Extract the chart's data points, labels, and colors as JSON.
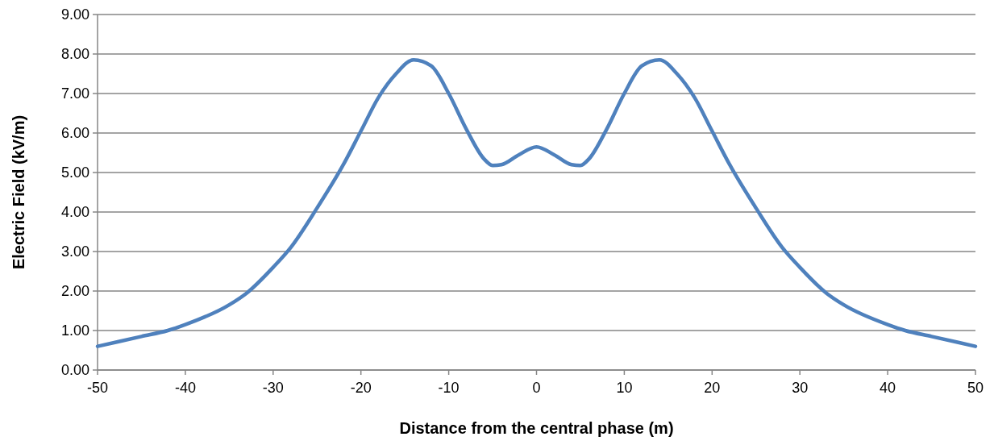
{
  "chart_data": {
    "type": "line",
    "xlabel": "Distance from the central phase (m)",
    "ylabel": "Electric Field (kV/m)",
    "x": [
      -50,
      -45,
      -42,
      -40,
      -35,
      -33,
      -30,
      -28,
      -25,
      -22,
      -20,
      -18,
      -16,
      -14,
      -12,
      -10,
      -8,
      -6,
      -5,
      -4,
      -2,
      0,
      2,
      4,
      5,
      6,
      8,
      10,
      12,
      14,
      16,
      18,
      20,
      22,
      25,
      28,
      30,
      33,
      35,
      40,
      42,
      45,
      50
    ],
    "series": [
      {
        "color": "#4f81bd",
        "values": [
          0.6,
          0.85,
          1.0,
          1.15,
          1.65,
          1.95,
          2.6,
          3.1,
          4.1,
          5.2,
          6.05,
          6.9,
          7.5,
          7.85,
          7.7,
          7.0,
          6.1,
          5.35,
          5.18,
          5.2,
          5.45,
          5.65,
          5.45,
          5.2,
          5.18,
          5.35,
          6.1,
          7.0,
          7.7,
          7.85,
          7.5,
          6.9,
          6.05,
          5.2,
          4.1,
          3.1,
          2.6,
          1.95,
          1.65,
          1.15,
          1.0,
          0.85,
          0.6
        ]
      }
    ],
    "xlim": [
      -50,
      50
    ],
    "xticks": [
      -50,
      -40,
      -30,
      -20,
      -10,
      0,
      10,
      20,
      30,
      40,
      50
    ],
    "ylim": [
      0,
      9
    ],
    "yticks": [
      {
        "value": 0,
        "label": "0.00"
      },
      {
        "value": 1,
        "label": "1.00"
      },
      {
        "value": 2,
        "label": "2.00"
      },
      {
        "value": 3,
        "label": "3.00"
      },
      {
        "value": 4,
        "label": "4.00"
      },
      {
        "value": 5,
        "label": "5.00"
      },
      {
        "value": 6,
        "label": "6.00"
      },
      {
        "value": 7,
        "label": "7.00"
      },
      {
        "value": 8,
        "label": "8.00"
      },
      {
        "value": 9,
        "label": "9.00"
      }
    ],
    "grid": "y",
    "marker": "none",
    "line_style": "solid"
  }
}
